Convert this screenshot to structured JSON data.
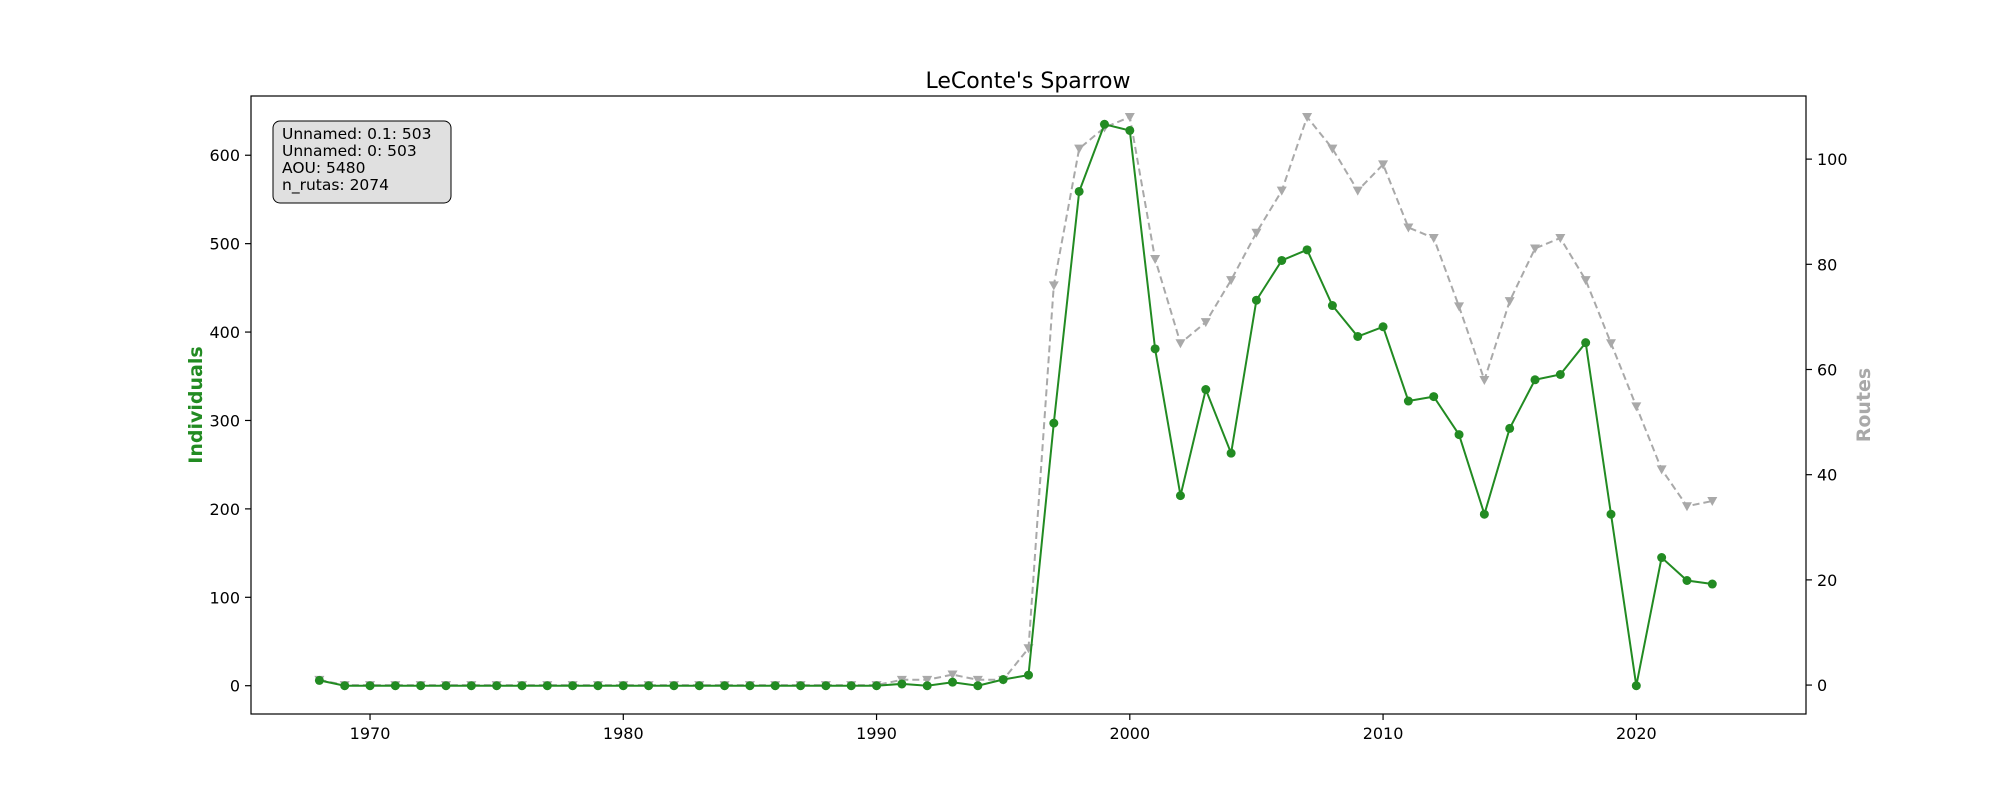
{
  "chart_data": {
    "type": "line",
    "title": "LeConte's Sparrow",
    "ylabel_left": "Individuals",
    "ylabel_right": "Routes",
    "xlim": [
      1965.3,
      2026.7
    ],
    "ylim_left": [
      -32,
      667
    ],
    "ylim_right": [
      -5.5,
      112
    ],
    "xticks": [
      1970,
      1980,
      1990,
      2000,
      2010,
      2020
    ],
    "yticks_left": [
      0,
      100,
      200,
      300,
      400,
      500,
      600
    ],
    "yticks_right": [
      0,
      20,
      40,
      60,
      80,
      100
    ],
    "grid": false,
    "colors": {
      "individuals": "#228b22",
      "routes": "#a9a9a9",
      "axis": "#000000",
      "box_fill": "#e0e0e0"
    },
    "x": [
      1968,
      1969,
      1970,
      1971,
      1972,
      1973,
      1974,
      1975,
      1976,
      1977,
      1978,
      1979,
      1980,
      1981,
      1982,
      1983,
      1984,
      1985,
      1986,
      1987,
      1988,
      1989,
      1990,
      1991,
      1992,
      1993,
      1994,
      1995,
      1996,
      1997,
      1998,
      1999,
      2000,
      2001,
      2002,
      2003,
      2004,
      2005,
      2006,
      2007,
      2008,
      2009,
      2010,
      2011,
      2012,
      2013,
      2014,
      2015,
      2016,
      2017,
      2018,
      2019,
      2020,
      2021,
      2022,
      2023
    ],
    "series": [
      {
        "axis": "left",
        "marker": "circle",
        "style": "solid",
        "values": [
          6,
          0,
          0,
          0,
          0,
          0,
          0,
          0,
          0,
          0,
          0,
          0,
          0,
          0,
          0,
          0,
          0,
          0,
          0,
          0,
          0,
          0,
          0,
          2,
          0,
          4,
          0,
          7,
          12,
          297,
          559,
          635,
          628,
          381,
          215,
          335,
          263,
          436,
          481,
          493,
          430,
          395,
          406,
          322,
          327,
          284,
          194,
          291,
          346,
          352,
          388,
          194,
          0,
          145,
          119,
          115
        ]
      },
      {
        "axis": "right",
        "marker": "triangle-down",
        "style": "dashed",
        "values": [
          1,
          0,
          0,
          0,
          0,
          0,
          0,
          0,
          0,
          0,
          0,
          0,
          0,
          0,
          0,
          0,
          0,
          0,
          0,
          0,
          0,
          0,
          0,
          1,
          1,
          2,
          1,
          1,
          7,
          76,
          102,
          106,
          108,
          81,
          65,
          69,
          77,
          86,
          94,
          108,
          102,
          94,
          99,
          87,
          85,
          72,
          58,
          73,
          83,
          85,
          77,
          65,
          53,
          41,
          34,
          35
        ]
      }
    ],
    "info_box": {
      "position": "top-left",
      "lines": [
        "Unnamed: 0.1: 503",
        "Unnamed: 0: 503",
        "AOU: 5480",
        "n_rutas: 2074"
      ]
    }
  }
}
